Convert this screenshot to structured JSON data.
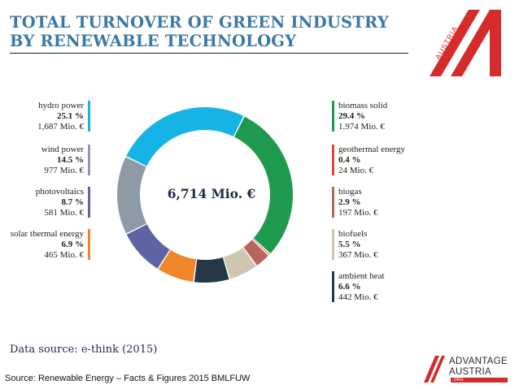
{
  "header": {
    "title_line1": "TOTAL TURNOVER OF GREEN INDUSTRY",
    "title_line2": "BY RENEWABLE TECHNOLOGY"
  },
  "austria_logo": {
    "text": "AUSTRIA",
    "color": "#d62b2b"
  },
  "chart_data": {
    "type": "pie",
    "style": "donut",
    "center_label": "6,714 Mio. €",
    "series": [
      {
        "name": "biomass solid",
        "percent_label": "29.4 %",
        "value_label": "1.974 Mio. €",
        "value": 1974,
        "color": "#1d9a4e"
      },
      {
        "name": "geothermal energy",
        "percent_label": "0.4 %",
        "value_label": "24 Mio. €",
        "value": 24,
        "color": "#e0463a"
      },
      {
        "name": "biogas",
        "percent_label": "2.9 %",
        "value_label": "197 Mio. €",
        "value": 197,
        "color": "#b7665c"
      },
      {
        "name": "biofuels",
        "percent_label": "5.5 %",
        "value_label": "367 Mio. €",
        "value": 367,
        "color": "#cfc6b2"
      },
      {
        "name": "ambient heat",
        "percent_label": "6.6 %",
        "value_label": "442 Mio. €",
        "value": 442,
        "color": "#243846"
      },
      {
        "name": "solar thermal energy",
        "percent_label": "6.9 %",
        "value_label": "465 Mio. €",
        "value": 465,
        "color": "#f0862a"
      },
      {
        "name": "photovoltaics",
        "percent_label": "8.7 %",
        "value_label": "581 Mio. €",
        "value": 581,
        "color": "#5e63a3"
      },
      {
        "name": "wind power",
        "percent_label": "14.5 %",
        "value_label": "977 Mio. €",
        "value": 977,
        "color": "#8e9ba6"
      },
      {
        "name": "hydro power",
        "percent_label": "25.1 %",
        "value_label": "1,687 Mio. €",
        "value": 1687,
        "color": "#16b4e6"
      }
    ]
  },
  "footer": {
    "data_source": "Data source: e-think (2015)",
    "source": "Source: Renewable Energy – Facts & Figures 2015 BMLFUW",
    "advantage_line1": "ADVANTAGE",
    "advantage_line2": "AUSTRIA",
    "advantage_badge": ".ORG"
  }
}
